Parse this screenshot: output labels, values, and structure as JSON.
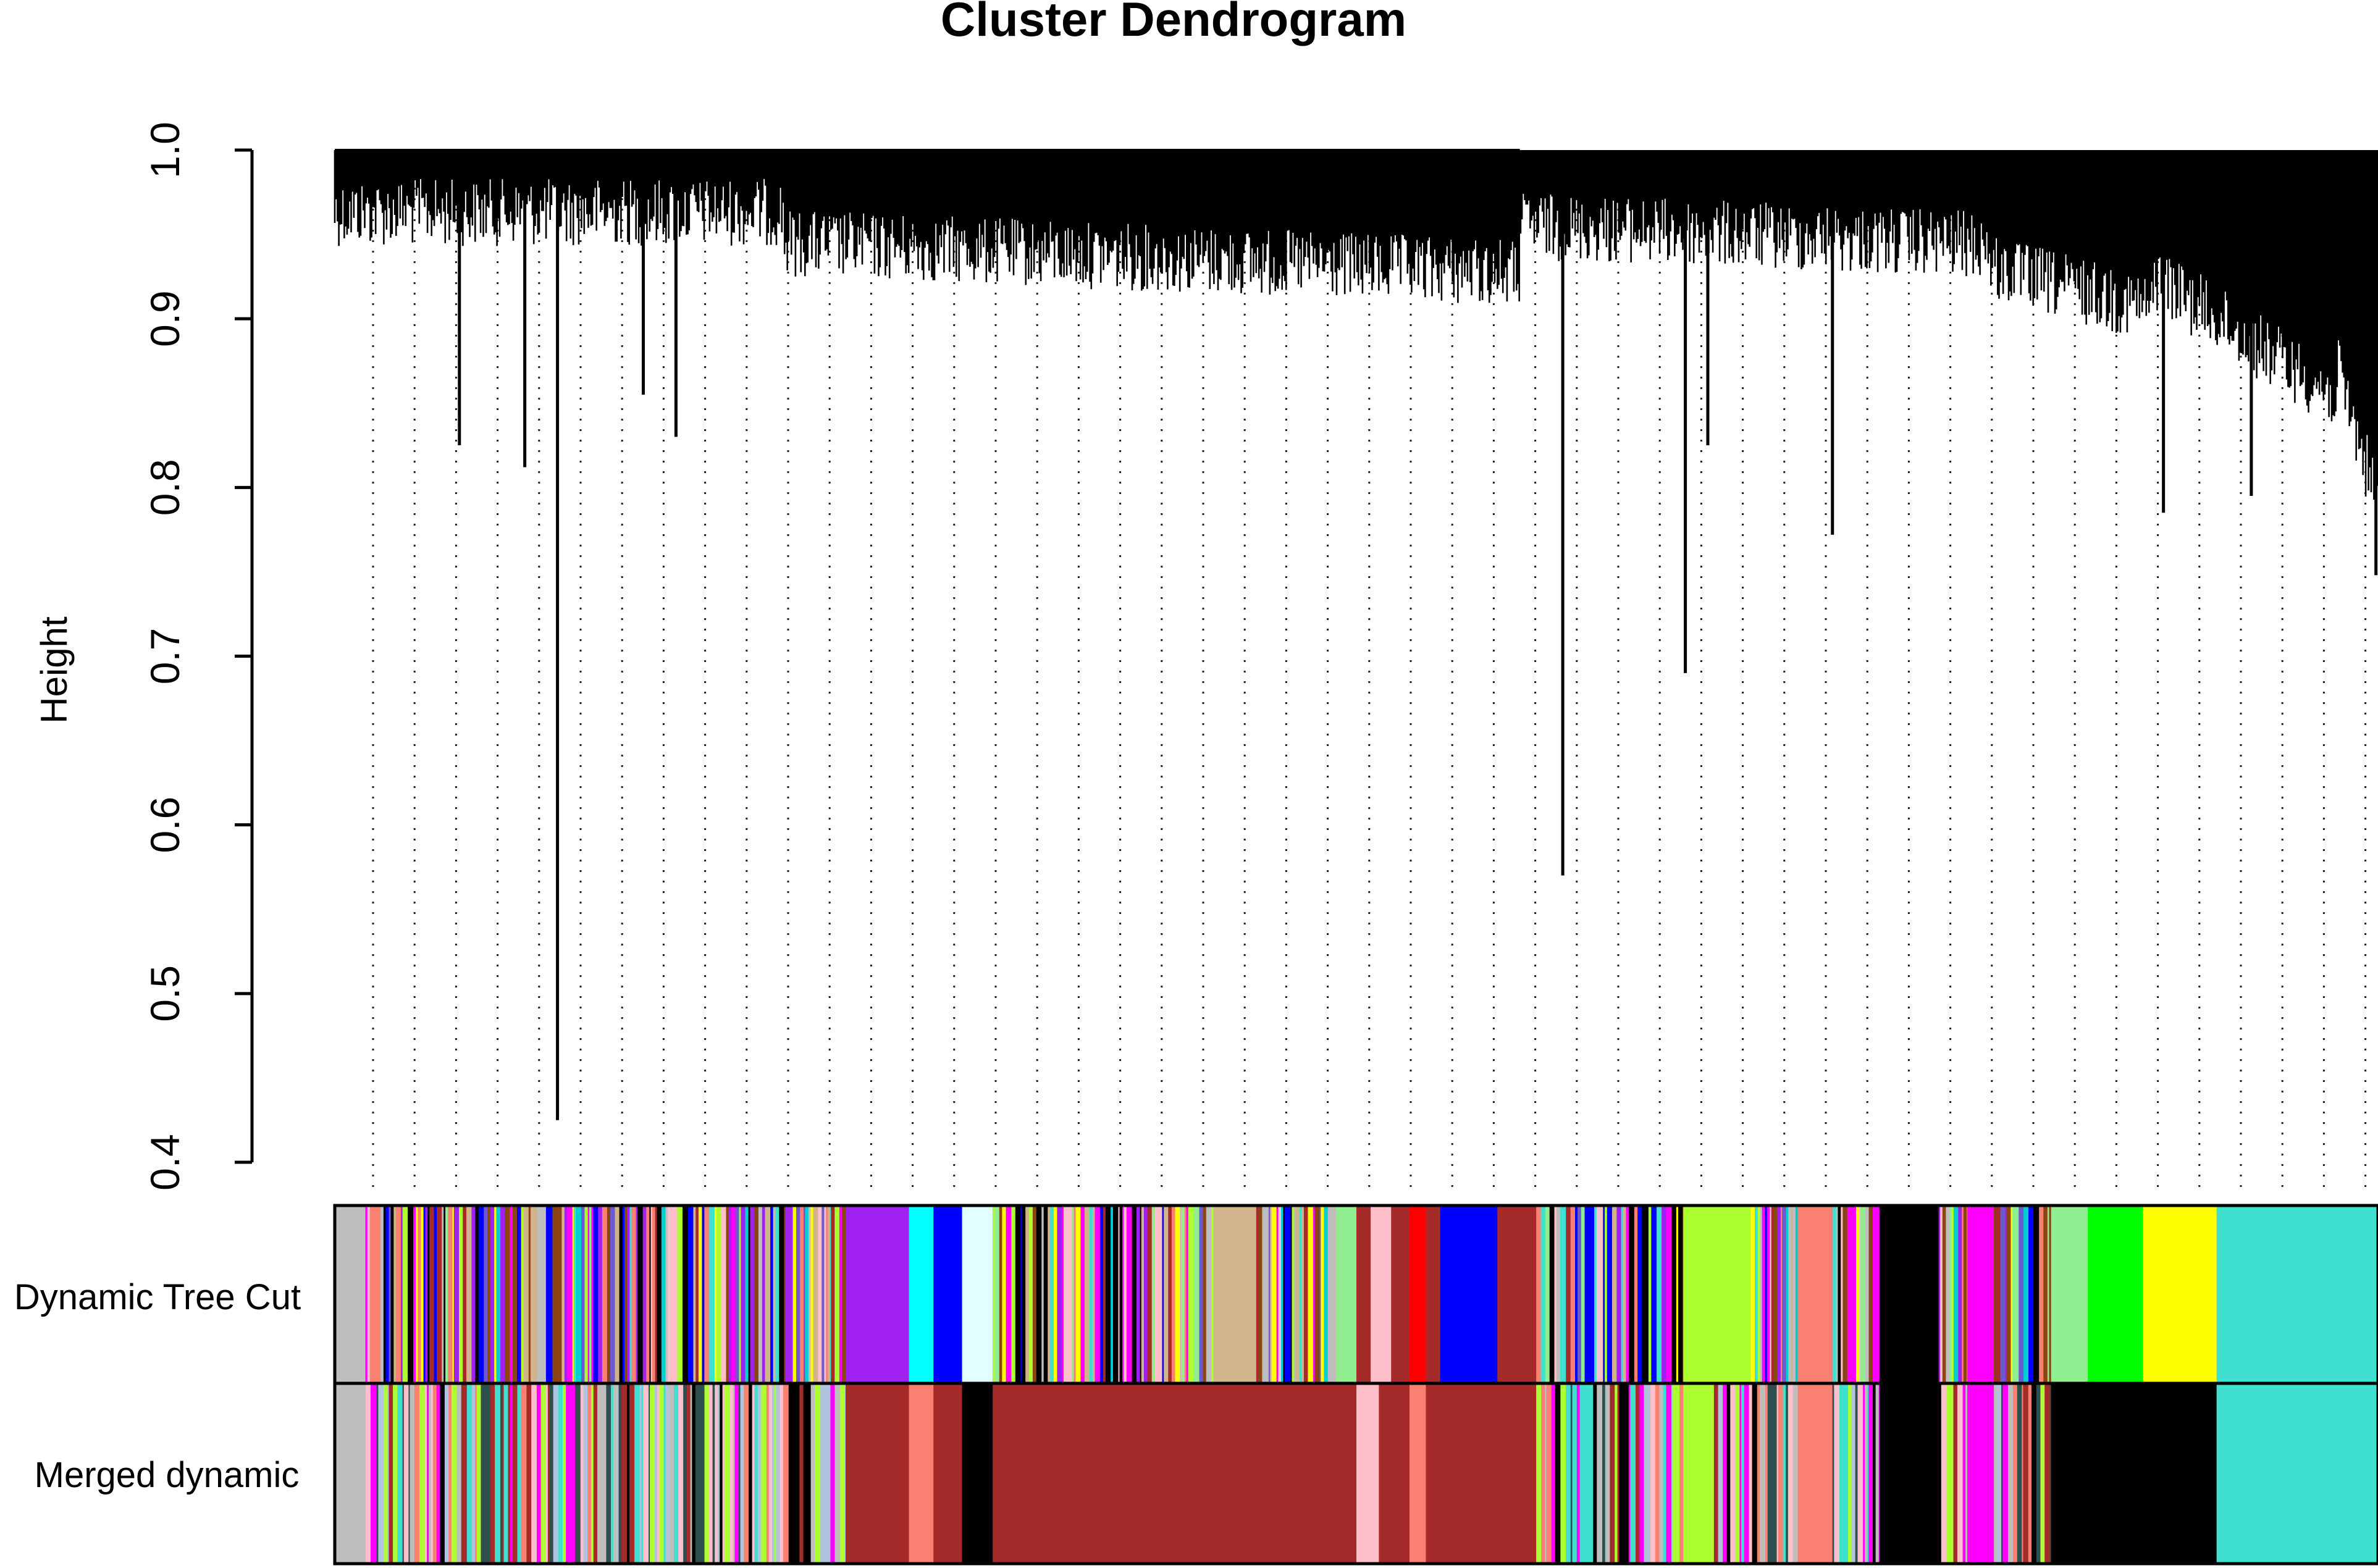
{
  "chart_data": {
    "type": "dendrogram",
    "title": "Cluster Dendrogram",
    "ylabel": "Height",
    "xlabel": "",
    "ylim": [
      0.4,
      1.0
    ],
    "yticks": [
      0.4,
      0.5,
      0.6,
      0.7,
      0.8,
      0.9,
      1.0
    ],
    "ytick_labels": [
      "0.4",
      "0.5",
      "0.6",
      "0.7",
      "0.8",
      "0.9",
      "1.0"
    ],
    "grid": "dotted vertical guide lines",
    "color_rows": [
      "Dynamic Tree Cut",
      "Merged dynamic"
    ],
    "notable_branches": [
      {
        "x_frac": 0.109,
        "min_height": 0.425
      },
      {
        "x_frac": 0.061,
        "min_height": 0.825
      },
      {
        "x_frac": 0.093,
        "min_height": 0.812
      },
      {
        "x_frac": 0.167,
        "min_height": 0.83
      },
      {
        "x_frac": 0.151,
        "min_height": 0.855
      },
      {
        "x_frac": 0.601,
        "min_height": 0.57
      },
      {
        "x_frac": 0.661,
        "min_height": 0.69
      },
      {
        "x_frac": 0.672,
        "min_height": 0.825
      },
      {
        "x_frac": 0.733,
        "min_height": 0.772
      },
      {
        "x_frac": 0.895,
        "min_height": 0.785
      },
      {
        "x_frac": 0.938,
        "min_height": 0.795
      },
      {
        "x_frac": 0.999,
        "min_height": 0.748
      }
    ],
    "top_merges": [
      {
        "from": 0.0,
        "to": 0.58,
        "height": 1.0
      },
      {
        "from": 0.58,
        "to": 0.81,
        "height": 0.99
      },
      {
        "from": 0.81,
        "to": 0.89,
        "height": 0.97
      },
      {
        "from": 0.89,
        "to": 0.98,
        "height": 0.968
      },
      {
        "from": 0.98,
        "to": 1.0,
        "height": 0.928
      }
    ],
    "dynamic_tree_cut_modules": [
      {
        "from": 0.0,
        "to": 0.015,
        "color": "#BEBEBE"
      },
      {
        "from": 0.015,
        "to": 0.25,
        "color": "mixed"
      },
      {
        "from": 0.25,
        "to": 0.281,
        "color": "#A020F0"
      },
      {
        "from": 0.281,
        "to": 0.293,
        "color": "#00FFFF"
      },
      {
        "from": 0.293,
        "to": 0.307,
        "color": "#0000FF"
      },
      {
        "from": 0.307,
        "to": 0.322,
        "color": "#E0FFFF"
      },
      {
        "from": 0.322,
        "to": 0.43,
        "color": "mixed"
      },
      {
        "from": 0.43,
        "to": 0.451,
        "color": "#D2B48C"
      },
      {
        "from": 0.451,
        "to": 0.49,
        "color": "mixed"
      },
      {
        "from": 0.49,
        "to": 0.5,
        "color": "#90EE90"
      },
      {
        "from": 0.5,
        "to": 0.507,
        "color": "#A52A2A"
      },
      {
        "from": 0.507,
        "to": 0.517,
        "color": "#FFC0CB"
      },
      {
        "from": 0.517,
        "to": 0.526,
        "color": "#A52A2A"
      },
      {
        "from": 0.526,
        "to": 0.534,
        "color": "#FF0000"
      },
      {
        "from": 0.534,
        "to": 0.541,
        "color": "#A52A2A"
      },
      {
        "from": 0.541,
        "to": 0.569,
        "color": "#0000FF"
      },
      {
        "from": 0.569,
        "to": 0.588,
        "color": "#A52A2A"
      },
      {
        "from": 0.588,
        "to": 0.66,
        "color": "mixed"
      },
      {
        "from": 0.66,
        "to": 0.693,
        "color": "#ADFF2F"
      },
      {
        "from": 0.693,
        "to": 0.716,
        "color": "mixed"
      },
      {
        "from": 0.716,
        "to": 0.733,
        "color": "#FA8072"
      },
      {
        "from": 0.733,
        "to": 0.756,
        "color": "mixed"
      },
      {
        "from": 0.756,
        "to": 0.785,
        "color": "#000000"
      },
      {
        "from": 0.785,
        "to": 0.799,
        "color": "mixed"
      },
      {
        "from": 0.799,
        "to": 0.812,
        "color": "#FF00FF"
      },
      {
        "from": 0.812,
        "to": 0.84,
        "color": "mixed"
      },
      {
        "from": 0.84,
        "to": 0.858,
        "color": "#90EE90"
      },
      {
        "from": 0.858,
        "to": 0.885,
        "color": "#00FF00"
      },
      {
        "from": 0.885,
        "to": 0.921,
        "color": "#FFFF00"
      },
      {
        "from": 0.921,
        "to": 1.0,
        "color": "#40E0D0"
      }
    ],
    "merged_dynamic_modules": [
      {
        "from": 0.0,
        "to": 0.015,
        "color": "#BEBEBE"
      },
      {
        "from": 0.015,
        "to": 0.25,
        "color": "mixed"
      },
      {
        "from": 0.25,
        "to": 0.281,
        "color": "#A52A2A"
      },
      {
        "from": 0.281,
        "to": 0.293,
        "color": "#FA8072"
      },
      {
        "from": 0.293,
        "to": 0.307,
        "color": "#A52A2A"
      },
      {
        "from": 0.307,
        "to": 0.322,
        "color": "#000000"
      },
      {
        "from": 0.322,
        "to": 0.5,
        "color": "#A52A2A"
      },
      {
        "from": 0.5,
        "to": 0.511,
        "color": "#FFC0CB"
      },
      {
        "from": 0.511,
        "to": 0.526,
        "color": "#A52A2A"
      },
      {
        "from": 0.526,
        "to": 0.534,
        "color": "#FA8072"
      },
      {
        "from": 0.534,
        "to": 0.588,
        "color": "#A52A2A"
      },
      {
        "from": 0.588,
        "to": 0.66,
        "color": "mixed"
      },
      {
        "from": 0.66,
        "to": 0.675,
        "color": "#ADFF2F"
      },
      {
        "from": 0.675,
        "to": 0.716,
        "color": "mixed"
      },
      {
        "from": 0.716,
        "to": 0.733,
        "color": "#FA8072"
      },
      {
        "from": 0.733,
        "to": 0.756,
        "color": "mixed"
      },
      {
        "from": 0.756,
        "to": 0.785,
        "color": "#000000"
      },
      {
        "from": 0.785,
        "to": 0.799,
        "color": "mixed"
      },
      {
        "from": 0.799,
        "to": 0.812,
        "color": "#FF00FF"
      },
      {
        "from": 0.812,
        "to": 0.84,
        "color": "mixed"
      },
      {
        "from": 0.84,
        "to": 0.921,
        "color": "#000000"
      },
      {
        "from": 0.921,
        "to": 1.0,
        "color": "#40E0D0"
      }
    ]
  }
}
